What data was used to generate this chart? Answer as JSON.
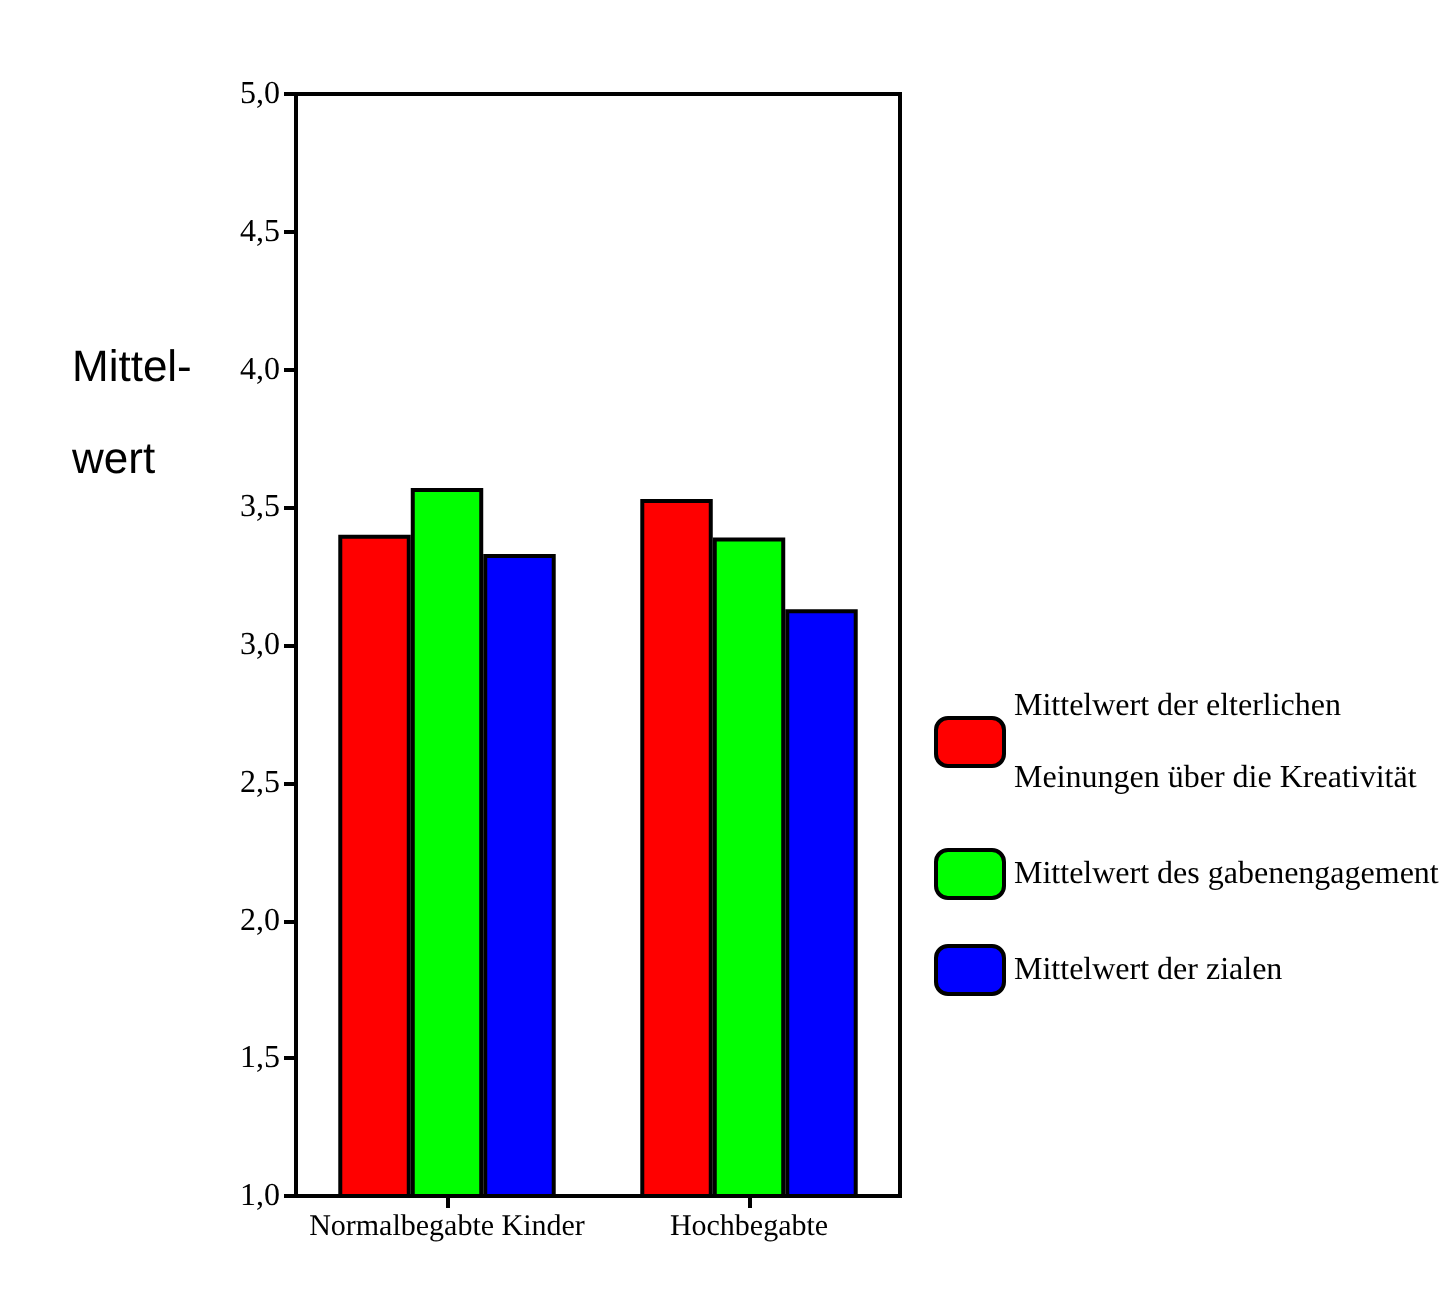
{
  "chart_data": {
    "type": "bar",
    "ylabel": "Mittel-\nwert",
    "categories": [
      "Normalbegabte Kinder",
      "Hochbegabte"
    ],
    "series": [
      {
        "name": "Mittelwert der elterlichen Meinungen über die Kreativität",
        "color": "#ff0000",
        "values": [
          3.4,
          3.53
        ]
      },
      {
        "name": "Mittelwert des gabenengagement",
        "color": "#00ff00",
        "values": [
          3.57,
          3.39
        ]
      },
      {
        "name": "Mittelwert der zialen",
        "color": "#0000ff",
        "values": [
          3.33,
          3.13
        ]
      }
    ],
    "ylim": [
      1,
      5
    ],
    "yticks": [
      {
        "value": 1,
        "label": "1,0"
      },
      {
        "value": 1.5,
        "label": "1,5"
      },
      {
        "value": 2,
        "label": "2,0"
      },
      {
        "value": 2.5,
        "label": "2,5"
      },
      {
        "value": 3,
        "label": "3,0"
      },
      {
        "value": 3.5,
        "label": "3,5"
      },
      {
        "value": 4,
        "label": "4,0"
      },
      {
        "value": 4.5,
        "label": "4,5"
      },
      {
        "value": 5,
        "label": "5,0"
      }
    ],
    "grid": false,
    "legend": "right"
  }
}
